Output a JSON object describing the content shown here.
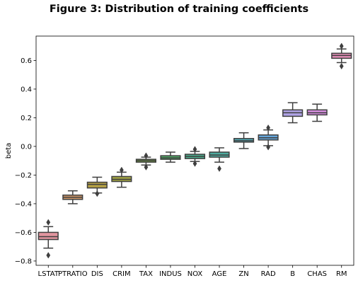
{
  "chart_data": {
    "type": "box",
    "title": "Figure 3: Distribution of training coefficients",
    "xlabel": "",
    "ylabel": "beta",
    "ylim": [
      -0.83,
      0.77
    ],
    "yticks": [
      -0.8,
      -0.6,
      -0.4,
      -0.2,
      0.0,
      0.2,
      0.4,
      0.6
    ],
    "ytick_labels": [
      "−0.8",
      "−0.6",
      "−0.4",
      "−0.2",
      "0.0",
      "0.2",
      "0.4",
      "0.6"
    ],
    "grid": false,
    "categories": [
      "LSTAT",
      "PTRATIO",
      "DIS",
      "CRIM",
      "TAX",
      "INDUS",
      "NOX",
      "AGE",
      "ZN",
      "RAD",
      "B",
      "CHAS",
      "RM"
    ],
    "boxes": [
      {
        "category": "LSTAT",
        "color": "#e2959f",
        "whisker_low": -0.71,
        "q1": -0.65,
        "median": -0.63,
        "q3": -0.6,
        "whisker_high": -0.56,
        "outliers": [
          -0.53,
          -0.76
        ]
      },
      {
        "category": "PTRATIO",
        "color": "#d39a6a",
        "whisker_low": -0.4,
        "q1": -0.37,
        "median": -0.355,
        "q3": -0.34,
        "whisker_high": -0.31,
        "outliers": []
      },
      {
        "category": "DIS",
        "color": "#b5a145",
        "whisker_low": -0.325,
        "q1": -0.29,
        "median": -0.265,
        "q3": -0.25,
        "whisker_high": -0.215,
        "outliers": [
          -0.33
        ]
      },
      {
        "category": "CRIM",
        "color": "#a2a444",
        "whisker_low": -0.285,
        "q1": -0.245,
        "median": -0.23,
        "q3": -0.21,
        "whisker_high": -0.18,
        "outliers": [
          -0.165
        ]
      },
      {
        "category": "TAX",
        "color": "#7aab45",
        "whisker_low": -0.13,
        "q1": -0.11,
        "median": -0.1,
        "q3": -0.09,
        "whisker_high": -0.075,
        "outliers": [
          -0.065,
          -0.145
        ]
      },
      {
        "category": "INDUS",
        "color": "#4fae66",
        "whisker_low": -0.11,
        "q1": -0.09,
        "median": -0.08,
        "q3": -0.065,
        "whisker_high": -0.04,
        "outliers": []
      },
      {
        "category": "NOX",
        "color": "#4cad8d",
        "whisker_low": -0.105,
        "q1": -0.085,
        "median": -0.07,
        "q3": -0.055,
        "whisker_high": -0.035,
        "outliers": [
          -0.02,
          -0.12
        ]
      },
      {
        "category": "AGE",
        "color": "#4eab9f",
        "whisker_low": -0.11,
        "q1": -0.075,
        "median": -0.06,
        "q3": -0.04,
        "whisker_high": -0.01,
        "outliers": [
          -0.155
        ]
      },
      {
        "category": "ZN",
        "color": "#50a9b3",
        "whisker_low": -0.015,
        "q1": 0.03,
        "median": 0.04,
        "q3": 0.055,
        "whisker_high": 0.095,
        "outliers": []
      },
      {
        "category": "RAD",
        "color": "#64a4d8",
        "whisker_low": 0.005,
        "q1": 0.045,
        "median": 0.06,
        "q3": 0.08,
        "whisker_high": 0.115,
        "outliers": [
          0.13,
          -0.005
        ]
      },
      {
        "category": "B",
        "color": "#b0a4e6",
        "whisker_low": 0.165,
        "q1": 0.21,
        "median": 0.235,
        "q3": 0.255,
        "whisker_high": 0.305,
        "outliers": []
      },
      {
        "category": "CHAS",
        "color": "#d88fe1",
        "whisker_low": 0.175,
        "q1": 0.22,
        "median": 0.235,
        "q3": 0.255,
        "whisker_high": 0.295,
        "outliers": []
      },
      {
        "category": "RM",
        "color": "#e58fb8",
        "whisker_low": 0.585,
        "q1": 0.615,
        "median": 0.635,
        "q3": 0.65,
        "whisker_high": 0.68,
        "outliers": [
          0.7,
          0.56
        ]
      }
    ]
  }
}
